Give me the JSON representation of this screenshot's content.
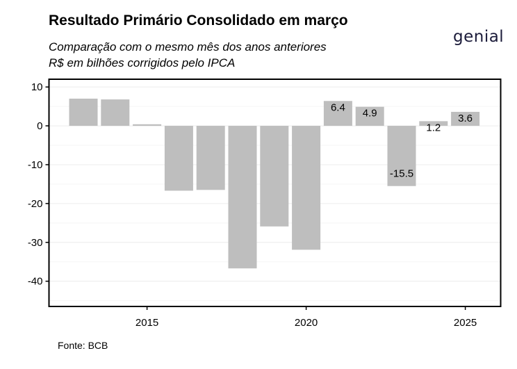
{
  "header": {
    "title": "Resultado Primário Consolidado em março",
    "subtitle_line1": "Comparação com o mesmo mês dos anos anteriores",
    "subtitle_line2": "R$ em bilhões corrigidos pelo IPCA"
  },
  "brand": {
    "logo_text": "genial",
    "logo_color": "#1b1b3a"
  },
  "footer": {
    "source": "Fonte: BCB"
  },
  "chart_data": {
    "type": "bar",
    "title": "Resultado Primário Consolidado em março",
    "subtitle": "Comparação com o mesmo mês dos anos anteriores / R$ em bilhões corrigidos pelo IPCA",
    "xlabel": "",
    "ylabel": "",
    "categories": [
      2013,
      2014,
      2015,
      2016,
      2017,
      2018,
      2019,
      2020,
      2021,
      2022,
      2023,
      2024,
      2025
    ],
    "values": [
      7.0,
      6.8,
      0.4,
      -16.7,
      -16.5,
      -36.7,
      -25.9,
      -31.9,
      6.4,
      4.9,
      -15.5,
      1.2,
      3.6
    ],
    "data_labels": [
      "",
      "",
      "",
      "",
      "",
      "",
      "",
      "",
      "6.4",
      "4.9",
      "-15.5",
      "1.2",
      "3.6"
    ],
    "x_ticks": [
      2015,
      2020,
      2025
    ],
    "y_ticks": [
      10,
      0,
      -10,
      -20,
      -30,
      -40
    ],
    "ylim": [
      -46.5,
      12
    ],
    "bar_color": "#bebebe",
    "grid": true,
    "legend": "none"
  }
}
